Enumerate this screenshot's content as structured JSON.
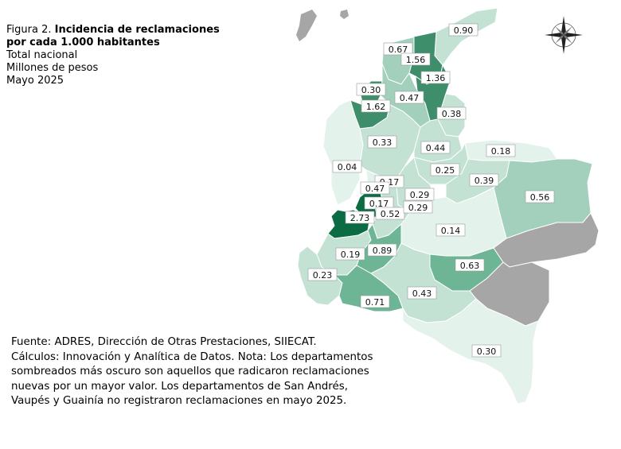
{
  "title": {
    "prefix": "Figura 2.",
    "bold_line1": "Incidencia de reclamaciones",
    "bold_line2": "por cada 1.000 habitantes",
    "line3": "Total nacional",
    "line4": "Millones de pesos",
    "line5": "Mayo 2025"
  },
  "notes": {
    "source": "Fuente: ADRES, Dirección de Otras Prestaciones, SIIECAT.",
    "calc": "Cálculos: Innovación y Analítica de Datos. Nota: Los departamentos sombreados más oscuro son aquellos que radicaron reclamaciones nuevas por un mayor valor. Los departamentos de San Andrés, Vaupés y Guainía no registraron reclamaciones en mayo 2025."
  },
  "compass_icon": "compass-rose-icon",
  "colors": {
    "no_data": "#a6a6a6",
    "lowest": "#e4f2ec",
    "low": "#c3e2d4",
    "mid": "#a2d0bd",
    "high": "#6db595",
    "higher": "#3e8d6b",
    "highest": "#0b6b43"
  },
  "regions": [
    {
      "name": "guajira",
      "value": "0.90"
    },
    {
      "name": "magdalena",
      "value": "0.67"
    },
    {
      "name": "atlantico",
      "value": "1.56"
    },
    {
      "name": "cesar",
      "value": "1.36"
    },
    {
      "name": "sucre",
      "value": "0.30"
    },
    {
      "name": "bolivar",
      "value": "0.47"
    },
    {
      "name": "cordoba",
      "value": "1.62"
    },
    {
      "name": "norte-santander",
      "value": "0.38"
    },
    {
      "name": "antioquia",
      "value": "0.33"
    },
    {
      "name": "santander",
      "value": "0.44"
    },
    {
      "name": "arauca",
      "value": "0.18"
    },
    {
      "name": "choco",
      "value": "0.04"
    },
    {
      "name": "boyaca",
      "value": "0.25"
    },
    {
      "name": "casanare",
      "value": "0.39"
    },
    {
      "name": "caldas",
      "value": "0.17"
    },
    {
      "name": "risaralda",
      "value": "0.47"
    },
    {
      "name": "cundinamarca",
      "value": "0.29"
    },
    {
      "name": "vichada",
      "value": "0.56"
    },
    {
      "name": "quindio",
      "value": "0.17"
    },
    {
      "name": "tolima",
      "value": "0.52"
    },
    {
      "name": "bogota",
      "value": "0.29"
    },
    {
      "name": "valle",
      "value": "2.73"
    },
    {
      "name": "meta",
      "value": "0.14"
    },
    {
      "name": "cauca",
      "value": "0.19"
    },
    {
      "name": "huila",
      "value": "0.89"
    },
    {
      "name": "guaviare",
      "value": "0.63"
    },
    {
      "name": "narino",
      "value": "0.23"
    },
    {
      "name": "caqueta",
      "value": "0.43"
    },
    {
      "name": "putumayo",
      "value": "0.71"
    },
    {
      "name": "amazonas",
      "value": "0.30"
    }
  ]
}
